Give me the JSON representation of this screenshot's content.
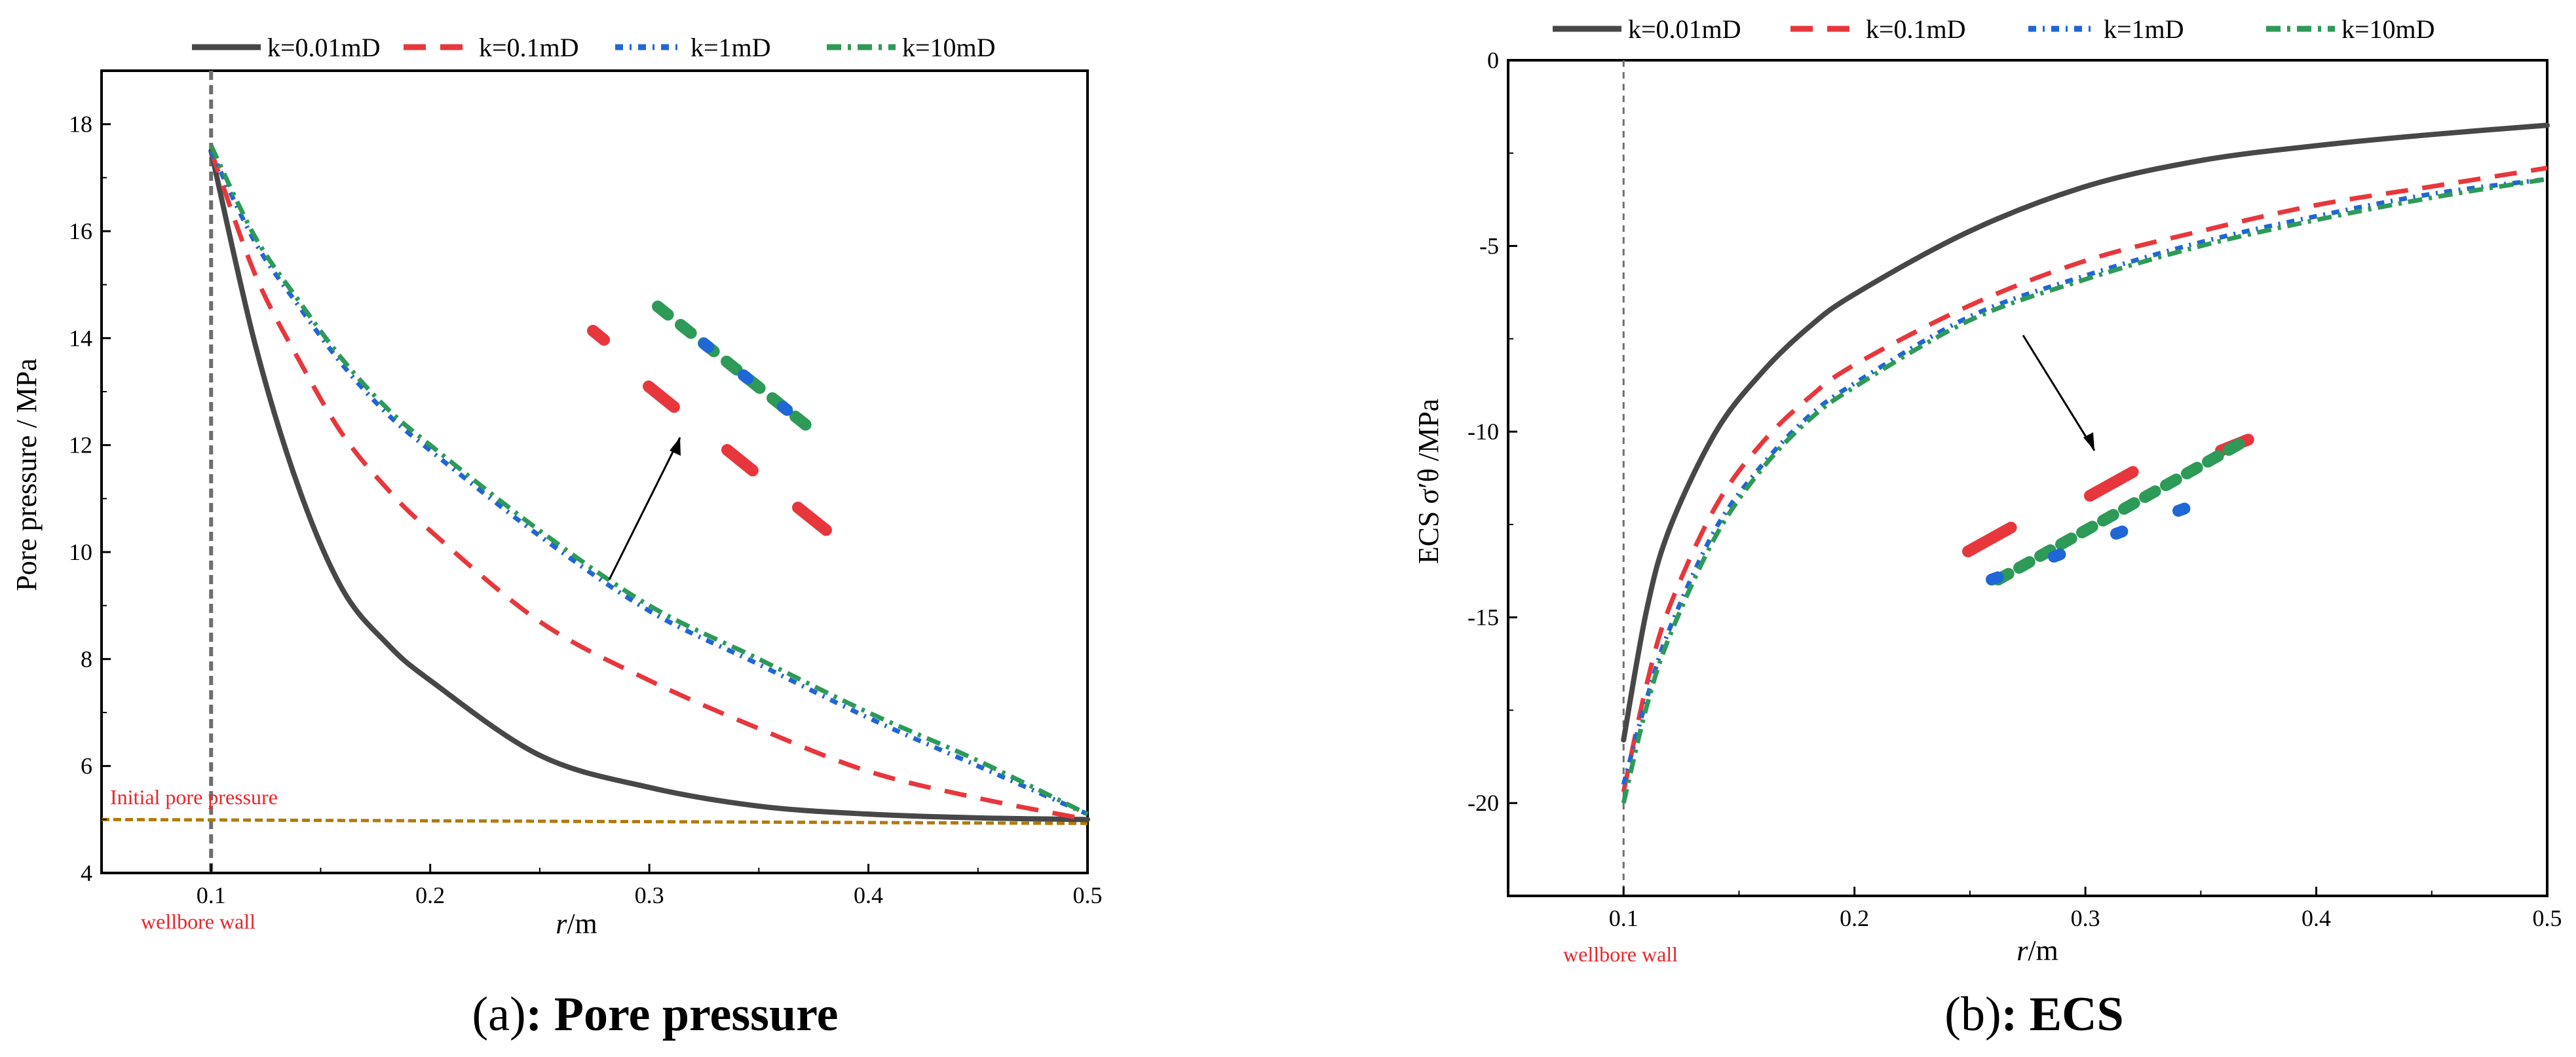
{
  "chart_data": [
    {
      "type": "line",
      "title": "",
      "caption_letter": "(a)",
      "caption_text": ": Pore pressure",
      "xlabel_italic": "r",
      "xlabel_rest": "/m",
      "ylabel": "Pore pressure / MPa",
      "xlim": [
        0.05,
        0.5
      ],
      "ylim": [
        4,
        19
      ],
      "xticks": [
        0.1,
        0.2,
        0.3,
        0.4,
        0.5
      ],
      "xtick_labels": [
        "0.1",
        "0.2",
        "0.3",
        "0.4",
        "0.5"
      ],
      "yticks": [
        4,
        6,
        8,
        10,
        12,
        14,
        16,
        18
      ],
      "ytick_labels": [
        "4",
        "6",
        "8",
        "10",
        "12",
        "14",
        "16",
        "18"
      ],
      "grid": false,
      "legend_position": "top",
      "annotations": {
        "initial_pore_pressure": "Initial pore pressure",
        "wellbore_wall": "wellbore wall"
      },
      "reference_lines": {
        "wellbore_wall_x": 0.1,
        "initial_pore_pressure_y": 5.0
      },
      "x": [
        0.1,
        0.12,
        0.14,
        0.16,
        0.18,
        0.2,
        0.25,
        0.3,
        0.35,
        0.4,
        0.45,
        0.5
      ],
      "series": [
        {
          "name": "k=0.01mD",
          "values": [
            17.5,
            13.9,
            11.2,
            9.3,
            8.3,
            7.6,
            6.2,
            5.6,
            5.25,
            5.1,
            5.03,
            5.0
          ]
        },
        {
          "name": "k=0.1mD",
          "values": [
            17.5,
            15.2,
            13.6,
            12.2,
            11.2,
            10.4,
            8.7,
            7.6,
            6.7,
            5.9,
            5.4,
            5.0
          ]
        },
        {
          "name": "k=1mD",
          "values": [
            17.5,
            15.8,
            14.6,
            13.5,
            12.6,
            11.9,
            10.3,
            8.9,
            7.9,
            6.9,
            6.0,
            5.1
          ]
        },
        {
          "name": "k=10mD",
          "values": [
            17.6,
            15.9,
            14.7,
            13.6,
            12.7,
            12.0,
            10.4,
            9.0,
            8.0,
            7.0,
            6.1,
            5.1
          ]
        }
      ]
    },
    {
      "type": "line",
      "title": "",
      "caption_letter": "(b)",
      "caption_text": ": ECS",
      "xlabel_italic": "r",
      "xlabel_rest": "/m",
      "ylabel": "ECS σ′θ /MPa",
      "xlim": [
        0.05,
        0.5
      ],
      "ylim": [
        -22.5,
        0
      ],
      "xticks": [
        0.1,
        0.2,
        0.3,
        0.4,
        0.5
      ],
      "xtick_labels": [
        "0.1",
        "0.2",
        "0.3",
        "0.4",
        "0.5"
      ],
      "yticks": [
        0,
        -5,
        -10,
        -15,
        -20
      ],
      "ytick_labels": [
        "0",
        "-5",
        "-10",
        "-15",
        "-20"
      ],
      "grid": false,
      "legend_position": "top",
      "annotations": {
        "wellbore_wall": "wellbore wall"
      },
      "reference_lines": {
        "wellbore_wall_x": 0.1
      },
      "x": [
        0.1,
        0.11,
        0.12,
        0.14,
        0.16,
        0.18,
        0.2,
        0.25,
        0.3,
        0.35,
        0.4,
        0.45,
        0.5
      ],
      "series": [
        {
          "name": "k=0.01mD",
          "values": [
            -18.3,
            -14.8,
            -12.6,
            -10.0,
            -8.4,
            -7.2,
            -6.3,
            -4.6,
            -3.4,
            -2.7,
            -2.3,
            -2.0,
            -1.75
          ]
        },
        {
          "name": "k=0.1mD",
          "values": [
            -19.7,
            -16.8,
            -14.7,
            -12.0,
            -10.3,
            -9.1,
            -8.2,
            -6.6,
            -5.4,
            -4.6,
            -3.9,
            -3.4,
            -2.9
          ]
        },
        {
          "name": "k=1mD",
          "values": [
            -19.5,
            -17.2,
            -15.3,
            -12.6,
            -10.9,
            -9.6,
            -8.7,
            -6.9,
            -5.8,
            -4.9,
            -4.2,
            -3.6,
            -3.2
          ]
        },
        {
          "name": "k=10mD",
          "values": [
            -20.0,
            -17.4,
            -15.5,
            -12.8,
            -11.0,
            -9.7,
            -8.8,
            -7.0,
            -5.9,
            -5.0,
            -4.3,
            -3.7,
            -3.2
          ]
        }
      ]
    }
  ],
  "series_styles": [
    {
      "color": "#474747",
      "dash": ""
    },
    {
      "color": "#e8373c",
      "dash": "34,22"
    },
    {
      "color": "#1f66d6",
      "dash": "12,10,3,10"
    },
    {
      "color": "#2d9a57",
      "dash": "22,10,5,10"
    }
  ],
  "colors": {
    "wellbore_line": "#6e6e6e",
    "initial_pressure_line": "#b07a0c",
    "annotation_red": "#e8262b"
  }
}
